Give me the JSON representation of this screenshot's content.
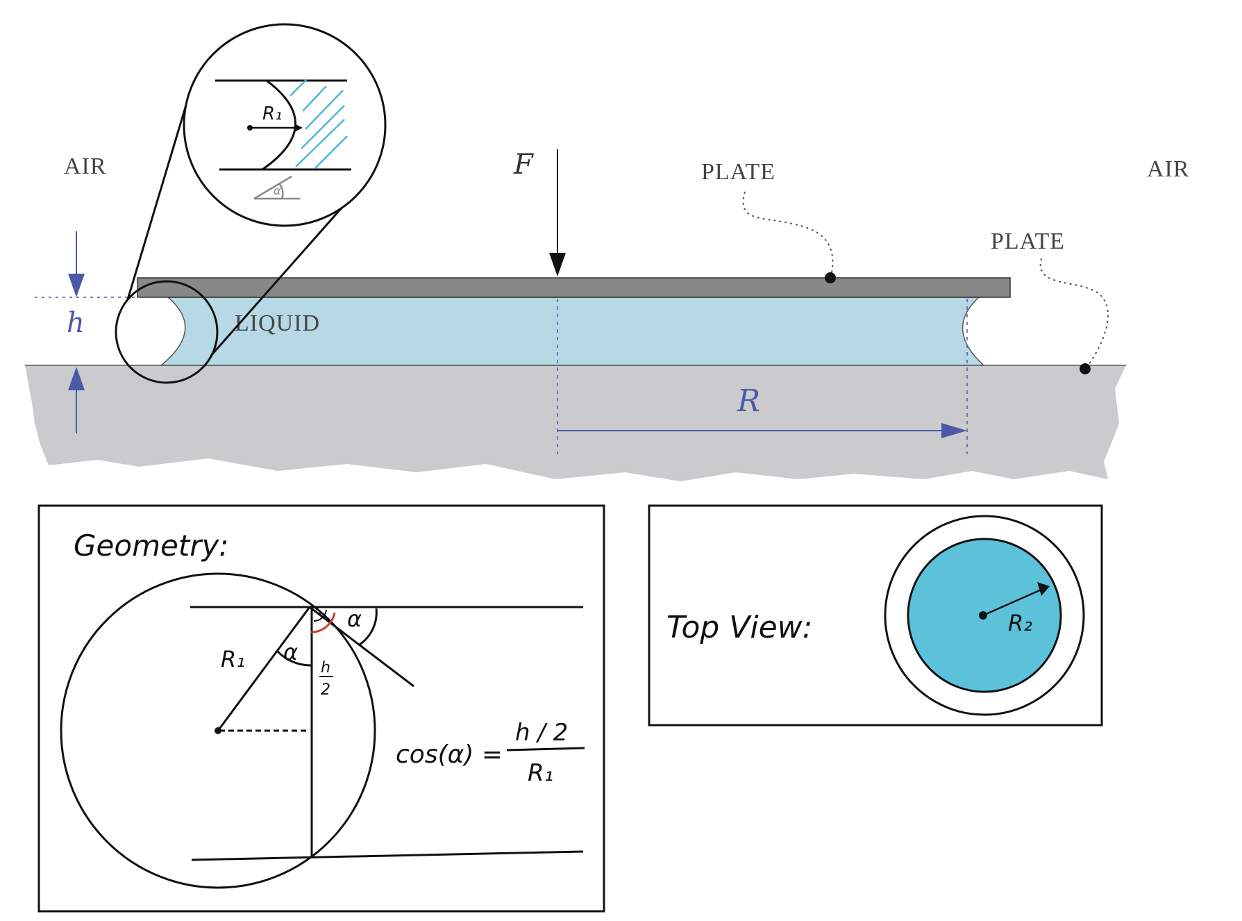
{
  "labels": {
    "air_left": "AIR",
    "air_right": "AIR",
    "plate_top": "PLATE",
    "plate_bottom": "PLATE",
    "liquid": "LIQUID",
    "force": "F",
    "height": "h",
    "radius": "R",
    "zoom_radius": "R₁",
    "zoom_angle": "α"
  },
  "geometry_panel": {
    "title": "Geometry:",
    "r1": "R₁",
    "alpha_inner": "α",
    "alpha_outer": "α",
    "half_h_num": "h",
    "half_h_den": "2",
    "formula_lhs": "cos(α) =",
    "formula_num": "h / 2",
    "formula_den": "R₁"
  },
  "top_view_panel": {
    "title": "Top View:",
    "r2": "R₂"
  },
  "colors": {
    "liquid": "#b7d8e5",
    "ground": "#cbcbcd",
    "plate": "#888888",
    "dimension_blue": "#4a5aa8",
    "top_view_fill": "#5bc2da",
    "hatch": "#49b8d6",
    "angle_red": "#d03a2a"
  }
}
